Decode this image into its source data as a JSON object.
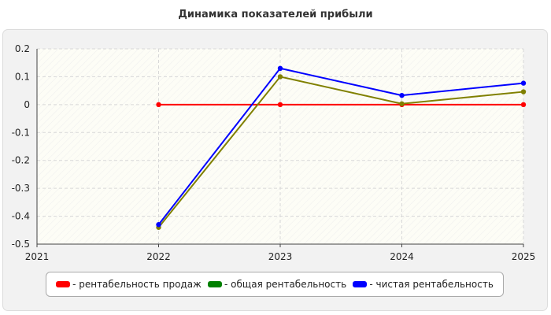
{
  "chart_data": {
    "type": "line",
    "title": "Динамика показателей прибыли",
    "xlabel": "",
    "ylabel": "",
    "x": [
      "2021",
      "2022",
      "2023",
      "2024",
      "2025"
    ],
    "ylim": [
      -0.5,
      0.2
    ],
    "yticks": [
      "0.2",
      "0.1",
      "0",
      "-0.1",
      "-0.2",
      "-0.3",
      "-0.4",
      "-0.5"
    ],
    "grid": true,
    "legend_position": "bottom",
    "series": [
      {
        "name": "- рентабельность продаж",
        "color": "#ff0000",
        "values": [
          null,
          0,
          0,
          0,
          0
        ]
      },
      {
        "name": "- общая рентабельность",
        "color": "#008000",
        "line_color": "#808000",
        "values": [
          null,
          -0.44,
          0.1,
          0.003,
          0.046
        ]
      },
      {
        "name": "- чистая рентабельность",
        "color": "#0000ff",
        "values": [
          null,
          -0.43,
          0.13,
          0.033,
          0.077
        ]
      }
    ]
  }
}
